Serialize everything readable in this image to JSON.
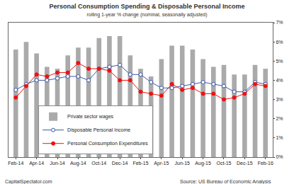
{
  "chart_data": {
    "type": "bar",
    "title": "Personal Consumption Spending & Disposable Personal Income",
    "subtitle": "rolling 1-year % change (nominal, seasonally adjusted)",
    "credit": "CapitalSpectator.com",
    "source": "Source: US Bureau of Economic Analysis",
    "categories": [
      "Feb-14",
      null,
      "Apr-14",
      null,
      "Jun-14",
      null,
      "Aug-14",
      null,
      "Oct-14",
      null,
      "Dec-14",
      null,
      "Feb-15",
      null,
      "Apr-15",
      null,
      "Jun-15",
      null,
      "Aug-15",
      null,
      "Oct-15",
      null,
      "Dec-15",
      null,
      "Feb-16"
    ],
    "series": [
      {
        "name": "Private sector wages",
        "type": "bar",
        "color": "#aaaaaa",
        "values": [
          5.6,
          6.0,
          5.4,
          4.7,
          4.6,
          5.3,
          5.7,
          5.7,
          6.2,
          6.3,
          6.3,
          5.3,
          4.6,
          4.2,
          5.1,
          5.8,
          5.8,
          5.6,
          5.1,
          4.7,
          4.8,
          4.3,
          4.3,
          4.8,
          4.6
        ]
      },
      {
        "name": "Disposable Personal Income",
        "type": "line",
        "color": "#3a56a8",
        "marker": "circle-open",
        "line_style": "solid",
        "values": [
          3.5,
          3.8,
          4.0,
          4.0,
          4.1,
          4.2,
          4.2,
          4.0,
          4.6,
          4.7,
          4.8,
          4.3,
          4.3,
          3.9,
          3.6,
          3.6,
          3.7,
          3.8,
          3.9,
          3.8,
          3.7,
          3.4,
          3.4,
          3.9,
          3.8
        ]
      },
      {
        "name": "Personal Consumption Expenditures",
        "type": "line",
        "color": "#ee1111",
        "marker": "circle",
        "line_style": "solid",
        "values": [
          3.1,
          3.7,
          4.3,
          4.2,
          4.4,
          4.4,
          4.9,
          4.6,
          4.6,
          4.5,
          4.0,
          4.0,
          3.4,
          3.3,
          3.2,
          3.8,
          3.5,
          3.6,
          3.3,
          3.3,
          3.0,
          3.1,
          3.3,
          3.8,
          3.7
        ]
      }
    ],
    "ylim": [
      0,
      7
    ],
    "yticks": [
      {
        "value": 0,
        "label": "0%"
      },
      {
        "value": 1,
        "label": "1%"
      },
      {
        "value": 2,
        "label": "2%"
      },
      {
        "value": 3,
        "label": "3%"
      },
      {
        "value": 4,
        "label": "4%"
      },
      {
        "value": 5,
        "label": "5%"
      },
      {
        "value": 6,
        "label": "6%"
      },
      {
        "value": 7,
        "label": "7%"
      }
    ],
    "grid": false,
    "legend": "lower center"
  }
}
